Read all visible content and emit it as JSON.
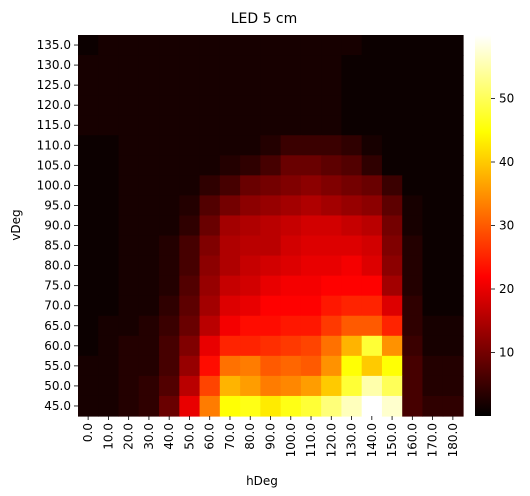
{
  "chart_data": {
    "type": "heatmap",
    "title": "LED 5 cm",
    "xlabel": "hDeg",
    "ylabel": "vDeg",
    "x_ticks": [
      "0.0",
      "10.0",
      "20.0",
      "30.0",
      "40.0",
      "50.0",
      "60.0",
      "70.0",
      "80.0",
      "90.0",
      "100.0",
      "110.0",
      "120.0",
      "130.0",
      "140.0",
      "150.0",
      "160.0",
      "170.0",
      "180.0"
    ],
    "y_ticks": [
      "135.0",
      "130.0",
      "125.0",
      "120.0",
      "115.0",
      "110.0",
      "105.0",
      "100.0",
      "95.0",
      "90.0",
      "85.0",
      "80.0",
      "75.0",
      "70.0",
      "65.0",
      "60.0",
      "55.0",
      "50.0",
      "45.0"
    ],
    "colorbar": {
      "colormap": "hot",
      "min": 0,
      "max": 60,
      "ticks": [
        10,
        20,
        30,
        40,
        50
      ]
    },
    "values": [
      [
        1,
        2,
        2,
        2,
        2,
        2,
        2,
        2,
        2,
        2,
        2,
        2,
        2,
        2,
        1,
        1,
        1,
        1,
        1
      ],
      [
        2,
        2,
        2,
        2,
        2,
        2,
        2,
        2,
        2,
        2,
        2,
        2,
        2,
        1,
        1,
        1,
        1,
        1,
        1
      ],
      [
        2,
        2,
        2,
        2,
        2,
        2,
        2,
        2,
        2,
        2,
        2,
        2,
        2,
        1,
        1,
        1,
        1,
        1,
        1
      ],
      [
        2,
        2,
        2,
        2,
        2,
        2,
        2,
        2,
        2,
        2,
        2,
        2,
        2,
        1,
        1,
        1,
        1,
        1,
        1
      ],
      [
        2,
        2,
        2,
        2,
        2,
        2,
        2,
        2,
        2,
        2,
        2,
        2,
        2,
        1,
        1,
        1,
        1,
        1,
        1
      ],
      [
        1,
        1,
        2,
        2,
        2,
        2,
        2,
        2,
        2,
        3,
        5,
        5,
        5,
        4,
        2,
        1,
        1,
        1,
        1
      ],
      [
        1,
        1,
        2,
        2,
        2,
        2,
        2,
        3,
        4,
        6,
        9,
        9,
        8,
        7,
        4,
        1,
        1,
        1,
        1
      ],
      [
        1,
        1,
        2,
        2,
        2,
        2,
        4,
        6,
        9,
        10,
        11,
        12,
        11,
        10,
        9,
        5,
        1,
        1,
        1
      ],
      [
        1,
        1,
        2,
        2,
        2,
        3,
        7,
        10,
        12,
        13,
        14,
        15,
        14,
        13,
        12,
        8,
        2,
        1,
        1
      ],
      [
        1,
        1,
        2,
        2,
        2,
        4,
        9,
        14,
        15,
        16,
        17,
        18,
        18,
        17,
        16,
        10,
        2,
        1,
        1
      ],
      [
        1,
        1,
        2,
        2,
        3,
        6,
        11,
        15,
        16,
        16,
        18,
        19,
        19,
        19,
        18,
        11,
        3,
        1,
        1
      ],
      [
        1,
        1,
        2,
        2,
        3,
        6,
        12,
        15,
        17,
        18,
        19,
        20,
        20,
        21,
        19,
        12,
        3,
        1,
        1
      ],
      [
        1,
        1,
        2,
        2,
        3,
        7,
        13,
        17,
        18,
        20,
        21,
        21,
        22,
        22,
        22,
        14,
        3,
        1,
        1
      ],
      [
        1,
        1,
        2,
        2,
        4,
        8,
        14,
        19,
        20,
        22,
        22,
        22,
        24,
        25,
        25,
        19,
        4,
        1,
        1
      ],
      [
        1,
        2,
        2,
        3,
        5,
        9,
        16,
        21,
        23,
        23,
        24,
        24,
        27,
        30,
        30,
        25,
        4,
        2,
        2
      ],
      [
        1,
        2,
        3,
        3,
        6,
        11,
        20,
        25,
        25,
        26,
        27,
        28,
        32,
        38,
        48,
        35,
        5,
        2,
        2
      ],
      [
        2,
        2,
        3,
        3,
        6,
        13,
        23,
        32,
        33,
        30,
        31,
        30,
        35,
        45,
        40,
        45,
        6,
        3,
        3
      ],
      [
        2,
        2,
        3,
        4,
        7,
        16,
        28,
        38,
        36,
        33,
        34,
        36,
        40,
        48,
        55,
        50,
        6,
        3,
        3
      ],
      [
        2,
        2,
        3,
        4,
        9,
        20,
        33,
        45,
        46,
        43,
        46,
        48,
        52,
        56,
        60,
        57,
        6,
        4,
        4
      ]
    ]
  }
}
